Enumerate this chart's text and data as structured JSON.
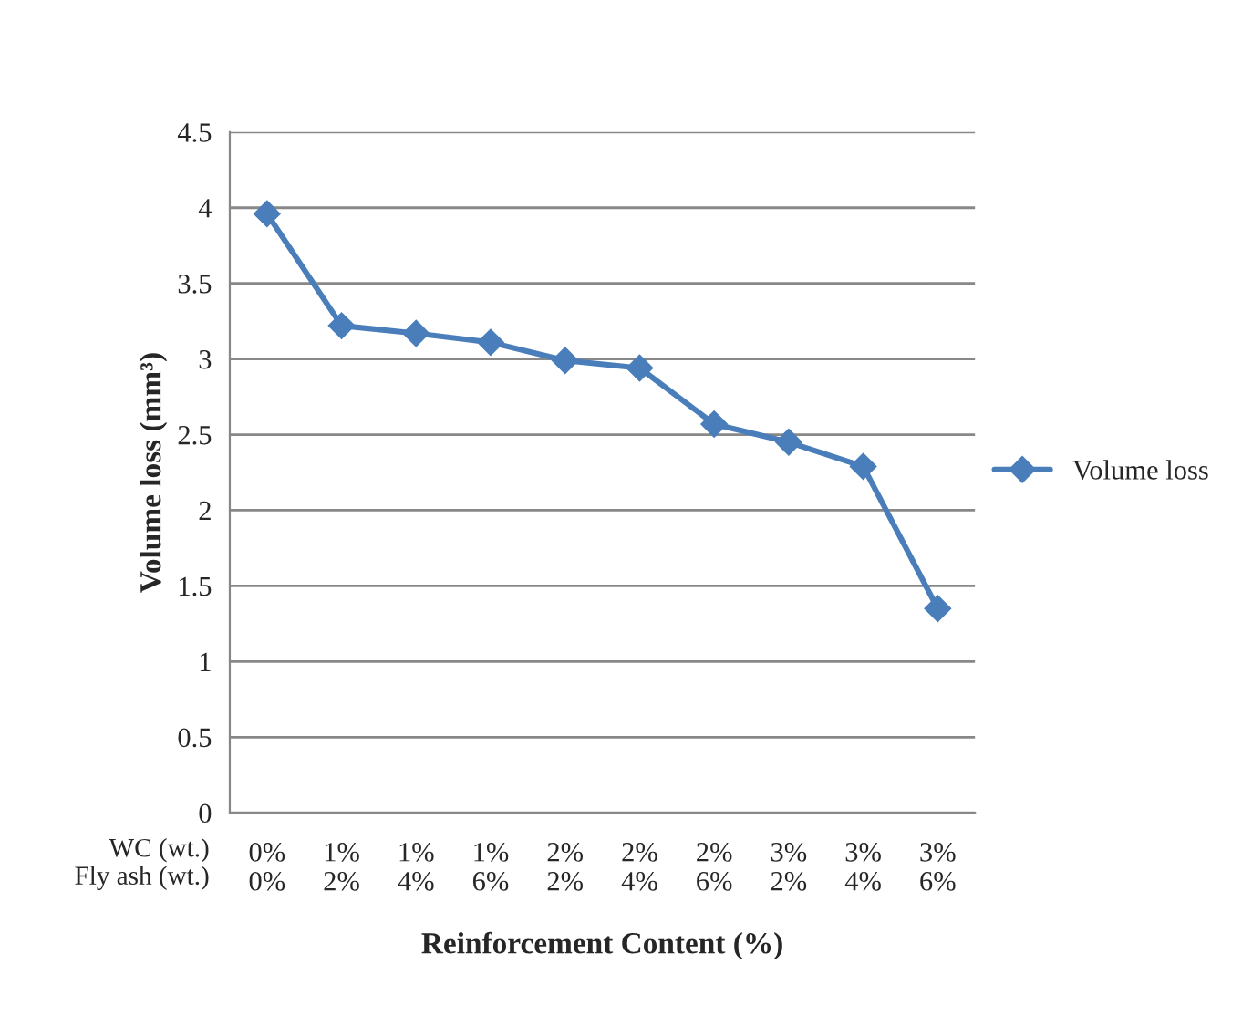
{
  "chart_data": {
    "type": "line",
    "xlabel": "Reinforcement Content (%)",
    "ylabel": "Volume loss (mm³)",
    "categories": [
      "0%\n0%",
      "1%\n2%",
      "1%\n4%",
      "1%\n6%",
      "2%\n2%",
      "2%\n4%",
      "2%\n6%",
      "3%\n2%",
      "3%\n4%",
      "3%\n6%"
    ],
    "series": [
      {
        "name": "Volume loss",
        "color": "#4a7ebb",
        "values": [
          3.96,
          3.22,
          3.17,
          3.11,
          2.99,
          2.94,
          2.57,
          2.45,
          2.29,
          1.35
        ]
      }
    ],
    "ylim": [
      0,
      4.5
    ],
    "yticks": [
      0,
      0.5,
      1,
      1.5,
      2,
      2.5,
      3,
      3.5,
      4,
      4.5
    ],
    "annotations": [
      "WC (wt.)\nFly ash (wt.)"
    ],
    "grid": "y",
    "legend": "right",
    "marker": "diamond",
    "line_style": "solid"
  }
}
